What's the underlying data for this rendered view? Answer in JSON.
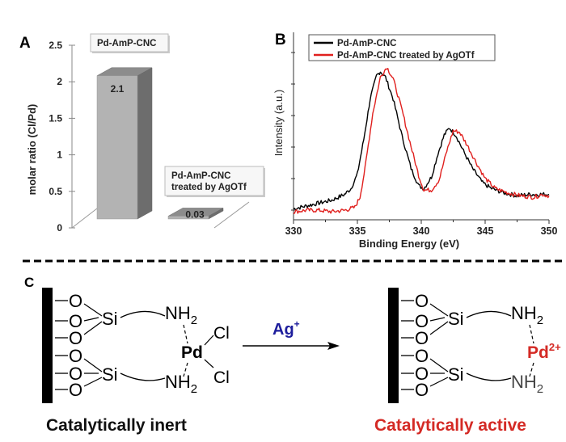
{
  "chart_data": [
    {
      "panel": "A",
      "type": "bar",
      "style": "3d",
      "ylabel": "molar ratio (Cl/Pd)",
      "ylim": [
        0,
        2.5
      ],
      "yticks": [
        "0",
        "0.5",
        "1",
        "1.5",
        "2",
        "2.5"
      ],
      "ytick_values": [
        0,
        0.5,
        1,
        1.5,
        2,
        2.5
      ],
      "categories": [
        "Pd-AmP-CNC",
        "Pd-AmP-CNC treated by AgOTf"
      ],
      "category_lines": [
        [
          "Pd-AmP-CNC"
        ],
        [
          "Pd-AmP-CNC",
          "treated by AgOTf"
        ]
      ],
      "values": [
        2.1,
        0.03
      ],
      "value_labels": [
        "2.1",
        "0.03"
      ],
      "colors": {
        "front": "#b3b3b3",
        "side": "#6d6d6d",
        "top": "#8c8c8c"
      }
    },
    {
      "panel": "B",
      "type": "line",
      "xlabel": "Binding Energy (eV)",
      "ylabel": "Intensity (a.u.)",
      "xlim": [
        330,
        350
      ],
      "xticks": [
        "330",
        "335",
        "340",
        "345",
        "350"
      ],
      "xtick_values": [
        330,
        335,
        340,
        345,
        350
      ],
      "ylim": [
        0,
        1
      ],
      "legend": "top-left",
      "series": [
        {
          "name": "Pd-AmP-CNC",
          "color": "#000000",
          "x": [
            330,
            331,
            332,
            333,
            334,
            334.5,
            335,
            335.5,
            336,
            336.5,
            336.8,
            337.2,
            337.8,
            338.5,
            339.2,
            339.8,
            340.2,
            340.8,
            341.3,
            341.8,
            342.2,
            342.7,
            343.3,
            344,
            344.8,
            345.5,
            346.5,
            347.5,
            348.5,
            349.5,
            350
          ],
          "y": [
            0.02,
            0.04,
            0.06,
            0.08,
            0.12,
            0.16,
            0.26,
            0.5,
            0.78,
            0.94,
            0.97,
            0.93,
            0.78,
            0.52,
            0.3,
            0.18,
            0.16,
            0.24,
            0.4,
            0.53,
            0.58,
            0.53,
            0.42,
            0.3,
            0.2,
            0.16,
            0.13,
            0.11,
            0.12,
            0.12,
            0.12
          ]
        },
        {
          "name": "Pd-AmP-CNC treated by AgOTf",
          "color": "#e0201e",
          "x": [
            330,
            331,
            332,
            333,
            334,
            334.8,
            335.2,
            335.6,
            336.2,
            336.8,
            337.3,
            337.8,
            338.5,
            339.2,
            339.8,
            340.2,
            340.8,
            341.4,
            342,
            342.5,
            343,
            343.6,
            344.3,
            345,
            345.8,
            346.8,
            347.8,
            348.8,
            349.5,
            350
          ],
          "y": [
            0.0,
            0.01,
            0.01,
            0.0,
            0.01,
            0.03,
            0.1,
            0.3,
            0.68,
            0.93,
            1.0,
            0.92,
            0.7,
            0.45,
            0.25,
            0.15,
            0.15,
            0.22,
            0.42,
            0.56,
            0.55,
            0.46,
            0.34,
            0.23,
            0.16,
            0.13,
            0.11,
            0.1,
            0.12,
            0.11
          ]
        }
      ]
    }
  ],
  "panels": {
    "a_label": "A",
    "b_label": "B",
    "c_label": "C"
  },
  "scheme": {
    "reagent": "Ag",
    "reagent_charge": "+",
    "left": {
      "oxygen": "O",
      "silicon": "Si",
      "amine": "NH",
      "amine_sub": "2",
      "metal": "Pd",
      "chloride": "Cl",
      "caption": "Catalytically inert"
    },
    "right": {
      "oxygen": "O",
      "silicon": "Si",
      "amine": "NH",
      "amine_sub": "2",
      "metal": "Pd",
      "metal_charge": "2+",
      "caption": "Catalytically active"
    },
    "colors": {
      "reagent": "#1d1d9c",
      "active": "#d42a25"
    }
  }
}
